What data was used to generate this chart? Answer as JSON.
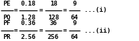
{
  "row1_frac1_num": "PE",
  "row1_frac1_den": "PQ",
  "row1_frac2_num": "0.18",
  "row1_frac2_den": "1.28",
  "row1_frac3_num": "18",
  "row1_frac3_den": "128",
  "row1_frac4_num": "9",
  "row1_frac4_den": "64",
  "row1_tag": "...(i)",
  "row2_frac1_num": "PF",
  "row2_frac1_den": "PR",
  "row2_frac2_num": "0.36",
  "row2_frac2_den": "2.56",
  "row2_frac3_num": "36",
  "row2_frac3_den": "256",
  "row2_frac4_num": "9",
  "row2_frac4_den": "64",
  "row2_tag": "...(ii)",
  "bg_color": "#ffffff",
  "text_color": "#000000",
  "font_size": 6.5,
  "bar_linewidth": 0.9
}
